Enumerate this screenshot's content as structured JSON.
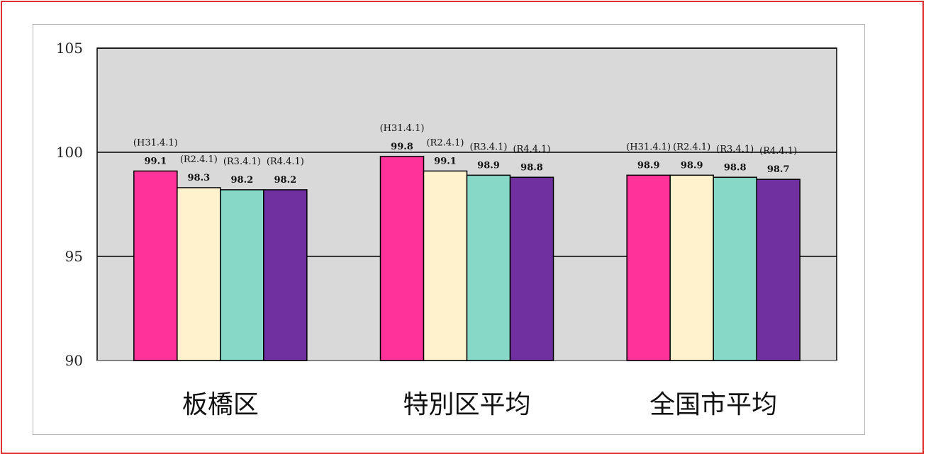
{
  "chart_data": {
    "type": "bar",
    "categories": [
      "板橋区",
      "特別区平均",
      "全国市平均"
    ],
    "series": [
      {
        "name": "(H31.4.1)",
        "values": [
          99.1,
          99.8,
          98.9
        ],
        "color": "#ff3399"
      },
      {
        "name": "(R2.4.1)",
        "values": [
          98.3,
          99.1,
          98.9
        ],
        "color": "#fff2cc"
      },
      {
        "name": "(R3.4.1)",
        "values": [
          98.2,
          98.9,
          98.8
        ],
        "color": "#88d8c8"
      },
      {
        "name": "(R4.4.1)",
        "values": [
          98.2,
          98.8,
          98.7
        ],
        "color": "#7030a0"
      }
    ],
    "value_labels": [
      [
        "99.1",
        "98.3",
        "98.2",
        "98.2"
      ],
      [
        "99.8",
        "99.1",
        "98.9",
        "98.8"
      ],
      [
        "98.9",
        "98.9",
        "98.8",
        "98.7"
      ]
    ],
    "period_labels": [
      "(H31.4.1)",
      "(R2.4.1)",
      "(R3.4.1)",
      "(R4.4.1)"
    ],
    "ylim": [
      90,
      105
    ],
    "yticks": [
      90,
      95,
      100,
      105
    ],
    "grid": true,
    "plot_background": "#d9d9d9",
    "title": "",
    "xlabel": "",
    "ylabel": ""
  }
}
